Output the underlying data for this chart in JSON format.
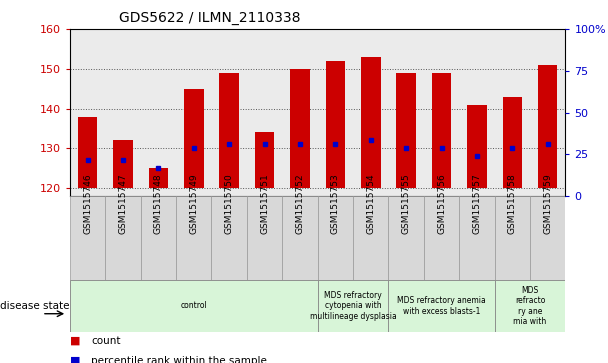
{
  "title": "GDS5622 / ILMN_2110338",
  "samples": [
    "GSM1515746",
    "GSM1515747",
    "GSM1515748",
    "GSM1515749",
    "GSM1515750",
    "GSM1515751",
    "GSM1515752",
    "GSM1515753",
    "GSM1515754",
    "GSM1515755",
    "GSM1515756",
    "GSM1515757",
    "GSM1515758",
    "GSM1515759"
  ],
  "bar_top": [
    138,
    132,
    125,
    145,
    149,
    134,
    150,
    152,
    153,
    149,
    149,
    141,
    143,
    151
  ],
  "bar_bottom": 120,
  "percentile_values": [
    127,
    127,
    125,
    130,
    131,
    131,
    131,
    131,
    132,
    130,
    130,
    128,
    130,
    131
  ],
  "ylim_left": [
    118,
    160
  ],
  "ylim_right": [
    0,
    100
  ],
  "yticks_left": [
    120,
    130,
    140,
    150,
    160
  ],
  "yticks_right": [
    0,
    25,
    50,
    75,
    100
  ],
  "bar_color": "#cc0000",
  "percentile_color": "#0000cc",
  "disease_groups": [
    {
      "label": "control",
      "start": 0,
      "end": 7,
      "color": "#d8f5d8"
    },
    {
      "label": "MDS refractory\ncytopenia with\nmultilineage dysplasia",
      "start": 7,
      "end": 9,
      "color": "#d8f5d8"
    },
    {
      "label": "MDS refractory anemia\nwith excess blasts-1",
      "start": 9,
      "end": 12,
      "color": "#d8f5d8"
    },
    {
      "label": "MDS\nrefracto\nry ane\nmia with",
      "start": 12,
      "end": 14,
      "color": "#d8f5d8"
    }
  ],
  "disease_state_label": "disease state",
  "legend_items": [
    {
      "label": "count",
      "color": "#cc0000"
    },
    {
      "label": "percentile rank within the sample",
      "color": "#0000cc"
    }
  ],
  "background_color": "#ffffff",
  "plot_bg_color": "#ebebeb",
  "sample_box_color": "#d8d8d8"
}
